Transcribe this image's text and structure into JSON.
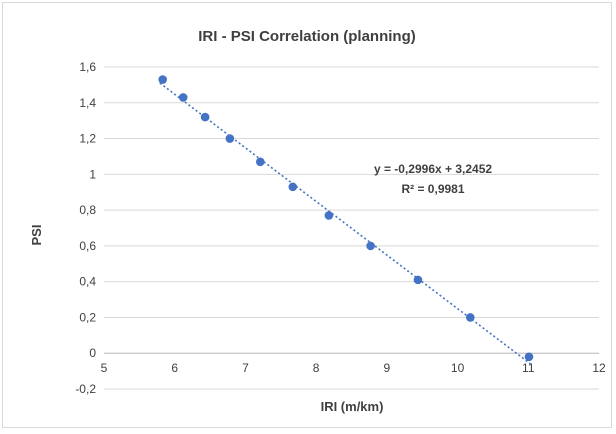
{
  "chart_data": {
    "type": "scatter",
    "title": "IRI - PSI Correlation (planning)",
    "xlabel": "IRI (m/km)",
    "ylabel": "PSI",
    "xlim": [
      5,
      12
    ],
    "ylim": [
      -0.2,
      1.6
    ],
    "x_ticks": [
      5,
      6,
      7,
      8,
      9,
      10,
      11,
      12
    ],
    "y_ticks": [
      -0.2,
      0,
      0.2,
      0.4,
      0.6,
      0.8,
      1.0,
      1.2,
      1.4,
      1.6
    ],
    "y_tick_labels": [
      "-0,2",
      "0",
      "0,2",
      "0,4",
      "0,6",
      "0,8",
      "1",
      "1,2",
      "1,4",
      "1,6"
    ],
    "x_tick_labels": [
      "5",
      "6",
      "7",
      "8",
      "9",
      "10",
      "11",
      "12"
    ],
    "grid": "horizontal",
    "colors": {
      "points": "#4472c4",
      "trendline": "#4472c4",
      "grid": "#d9d9d9",
      "text": "#404040"
    },
    "series": [
      {
        "x": [
          5.83,
          6.12,
          6.43,
          6.78,
          7.21,
          7.67,
          8.18,
          8.77,
          9.44,
          10.18,
          11.01
        ],
        "y": [
          1.53,
          1.43,
          1.32,
          1.2,
          1.07,
          0.93,
          0.77,
          0.6,
          0.41,
          0.2,
          -0.02
        ]
      }
    ],
    "trendline": {
      "type": "linear",
      "slope": -0.2996,
      "intercept": 3.2452,
      "equation": "y = -0,2996x + 3,2452",
      "r_squared": "R² = 0,9981"
    }
  }
}
